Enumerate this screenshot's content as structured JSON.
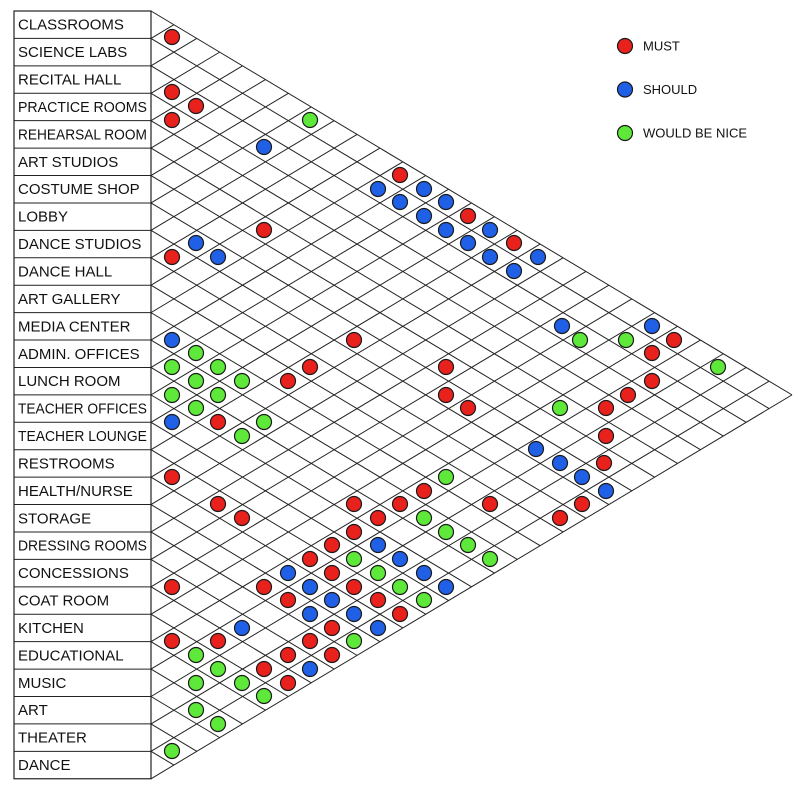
{
  "rooms": [
    "CLASSROOMS",
    "SCIENCE LABS",
    "RECITAL HALL",
    "PRACTICE ROOMS",
    "REHEARSAL ROOM",
    "ART STUDIOS",
    "COSTUME SHOP",
    "LOBBY",
    "DANCE STUDIOS",
    "DANCE HALL",
    "ART GALLERY",
    "MEDIA CENTER",
    "ADMIN. OFFICES",
    "LUNCH ROOM",
    "TEACHER OFFICES",
    "TEACHER LOUNGE",
    "RESTROOMS",
    "HEALTH/NURSE",
    "STORAGE",
    "DRESSING ROOMS",
    "CONCESSIONS",
    "COAT ROOM",
    "KITCHEN",
    "EDUCATIONAL",
    "MUSIC",
    "ART",
    "THEATER",
    "DANCE"
  ],
  "legend": [
    {
      "key": "must",
      "label": "MUST",
      "color": "#e8211d"
    },
    {
      "key": "should",
      "label": "SHOULD",
      "color": "#2060e6"
    },
    {
      "key": "nice",
      "label": "WOULD BE NICE",
      "color": "#5ee83a"
    }
  ],
  "relationships": [
    [
      1,
      2,
      "must"
    ],
    [
      1,
      4,
      "must"
    ],
    [
      2,
      4,
      "must"
    ],
    [
      1,
      5,
      "must"
    ],
    [
      2,
      6,
      "nice"
    ],
    [
      1,
      11,
      "should"
    ],
    [
      1,
      19,
      "must"
    ],
    [
      1,
      20,
      "should"
    ],
    [
      1,
      21,
      "should"
    ],
    [
      1,
      26,
      "should"
    ],
    [
      1,
      3,
      "should"
    ],
    [
      1,
      9,
      "must"
    ],
    [
      1,
      10,
      "must"
    ],
    [
      1,
      11,
      "should"
    ],
    [
      1,
      12,
      "should"
    ],
    [
      1,
      13,
      "must"
    ],
    [
      1,
      14,
      "should"
    ],
    [
      1,
      18,
      "should"
    ],
    [
      1,
      19,
      "should"
    ],
    [
      1,
      20,
      "must"
    ],
    [
      1,
      21,
      "must"
    ],
    [
      1,
      22,
      "should"
    ],
    [
      1,
      23,
      "must"
    ],
    [
      1,
      24,
      "must"
    ],
    [
      1,
      27,
      "nice"
    ],
    [
      1,
      13,
      "should"
    ],
    [
      1,
      22,
      "must"
    ],
    [
      1,
      23,
      "must"
    ],
    [
      1,
      14,
      "nice"
    ],
    [
      2,
      14,
      "nice"
    ],
    [
      5,
      16,
      "must"
    ],
    [
      6,
      17,
      "must"
    ],
    [
      12,
      26,
      "must"
    ],
    [
      1,
      15,
      "nice"
    ],
    [
      2,
      15,
      "nice"
    ],
    [
      3,
      15,
      "nice"
    ],
    [
      1,
      16,
      "should"
    ],
    [
      2,
      16,
      "must"
    ],
    [
      3,
      16,
      "nice"
    ],
    [
      1,
      16,
      "should"
    ],
    [
      2,
      17,
      "nice"
    ],
    [
      1,
      18,
      "must"
    ],
    [
      2,
      19,
      "must"
    ],
    [
      3,
      20,
      "must"
    ],
    [
      3,
      19,
      "must"
    ]
  ]
}
